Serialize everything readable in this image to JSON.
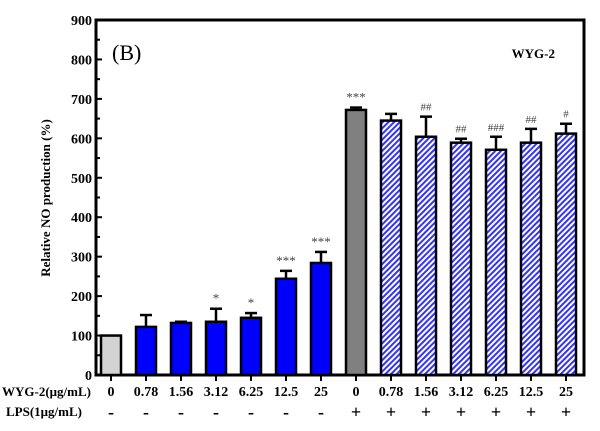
{
  "chart_data": {
    "type": "bar",
    "title": "(B)",
    "annotation": "WYG-2",
    "ylabel": "Relative NO production (%)",
    "ylim": [
      0,
      900
    ],
    "yticks": [
      0,
      100,
      200,
      300,
      400,
      500,
      600,
      700,
      800,
      900
    ],
    "grid": false,
    "row_labels": [
      "WYG-2(μg/mL)",
      "LPS(1μg/mL)"
    ],
    "categories": [
      "0",
      "0.78",
      "1.56",
      "3.12",
      "6.25",
      "12.5",
      "25",
      "0",
      "0.78",
      "1.56",
      "3.12",
      "6.25",
      "12.5",
      "25"
    ],
    "lps": [
      "-",
      "-",
      "-",
      "-",
      "-",
      "-",
      "-",
      "+",
      "+",
      "+",
      "+",
      "+",
      "+",
      "+"
    ],
    "values": [
      100,
      122,
      132,
      135,
      145,
      244,
      284,
      672,
      645,
      604,
      589,
      571,
      589,
      612
    ],
    "errors": [
      0,
      30,
      3,
      33,
      12,
      20,
      28,
      6,
      17,
      51,
      10,
      33,
      35,
      25
    ],
    "significance": [
      "",
      "",
      "",
      "*",
      "*",
      "***",
      "***",
      "***",
      "",
      "##",
      "##",
      "###",
      "##",
      "#"
    ],
    "styles": [
      "control",
      "wyg",
      "wyg",
      "wyg",
      "wyg",
      "wyg",
      "wyg",
      "lps",
      "lps+wyg",
      "lps+wyg",
      "lps+wyg",
      "lps+wyg",
      "lps+wyg",
      "lps+wyg"
    ],
    "colors": {
      "control": "#d3d3d3",
      "wyg": "#0000ff",
      "lps": "#808080",
      "hatch": "#3333ff"
    }
  }
}
